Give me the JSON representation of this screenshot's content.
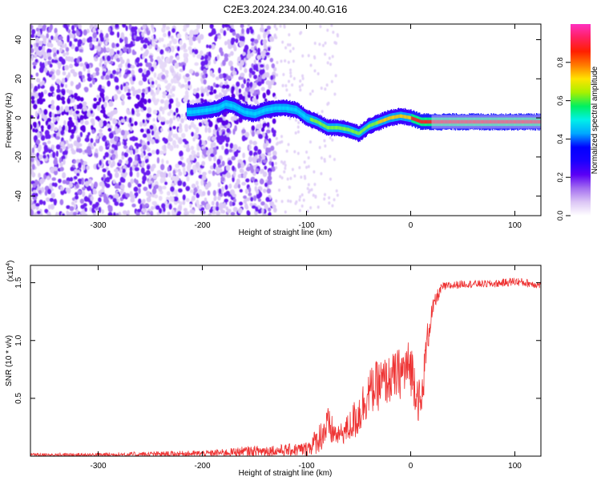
{
  "title": "C2E3.2024.234.00.40.G16",
  "chart_data": [
    {
      "type": "heatmap",
      "xlabel": "Height of straight line (km)",
      "ylabel": "Frequency (Hz)",
      "xlim": [
        -365,
        125
      ],
      "ylim": [
        -50,
        48
      ],
      "xticks": [
        -300,
        -200,
        -100,
        0,
        100
      ],
      "yticks": [
        -40,
        -20,
        0,
        20,
        40
      ],
      "colorbar": {
        "label": "Normalized spectral amplitude",
        "ticks": [
          0.0,
          0.2,
          0.4,
          0.6,
          0.8
        ],
        "range": [
          0,
          1
        ],
        "colors": [
          "#ffffff",
          "#dcc6f5",
          "#a36ef0",
          "#5a00f5",
          "#1a00ff",
          "#0000ff",
          "#00a8ff",
          "#00f0e8",
          "#00f060",
          "#a8f000",
          "#ffe400",
          "#ff7a00",
          "#ff1f00",
          "#ff2060",
          "#ff30c0"
        ]
      },
      "ridge": {
        "x": [
          -210,
          -195,
          -185,
          -178,
          -170,
          -160,
          -150,
          -140,
          -130,
          -120,
          -110,
          -100,
          -90,
          -80,
          -70,
          -60,
          -50,
          -45,
          -40,
          -30,
          -20,
          -10,
          0,
          10,
          20,
          40,
          60,
          80,
          100,
          125
        ],
        "freq": [
          3,
          4,
          5,
          7,
          6,
          3,
          2,
          4,
          5,
          5,
          4,
          0,
          -2,
          -5,
          -5,
          -6,
          -8,
          -6,
          -4,
          -2,
          0,
          1,
          0,
          -2,
          -2,
          -2,
          -2,
          -2,
          -2,
          -2
        ]
      }
    },
    {
      "type": "line",
      "xlabel": "Height of straight line (km)",
      "ylabel": "SNR (10 * v/v)",
      "yscale_label": "(x10",
      "yscale_exponent": "4",
      "xlim": [
        -365,
        125
      ],
      "ylim": [
        0,
        16500
      ],
      "xticks": [
        -300,
        -200,
        -100,
        0,
        100
      ],
      "yticks": [
        5000,
        10000,
        15000
      ],
      "ytick_labels": [
        "0.5",
        "1.0",
        "1.5"
      ],
      "color": "#ee3333",
      "envelope": {
        "x": [
          -365,
          -300,
          -250,
          -200,
          -180,
          -160,
          -140,
          -120,
          -100,
          -90,
          -80,
          -70,
          -60,
          -50,
          -40,
          -30,
          -20,
          -10,
          0,
          10,
          15,
          20,
          25,
          30,
          50,
          80,
          100,
          125
        ],
        "base": [
          0,
          50,
          100,
          150,
          200,
          250,
          300,
          350,
          400,
          1000,
          2000,
          1500,
          2000,
          3000,
          5000,
          5500,
          6000,
          6500,
          7000,
          3500,
          9000,
          12000,
          13500,
          14500,
          14800,
          14800,
          15000,
          14700
        ],
        "amp": [
          300,
          300,
          350,
          400,
          500,
          700,
          800,
          800,
          1000,
          1800,
          2800,
          1200,
          2000,
          3200,
          3000,
          3500,
          3200,
          3500,
          3800,
          3000,
          2500,
          1500,
          1000,
          600,
          500,
          500,
          600,
          500
        ]
      }
    }
  ]
}
